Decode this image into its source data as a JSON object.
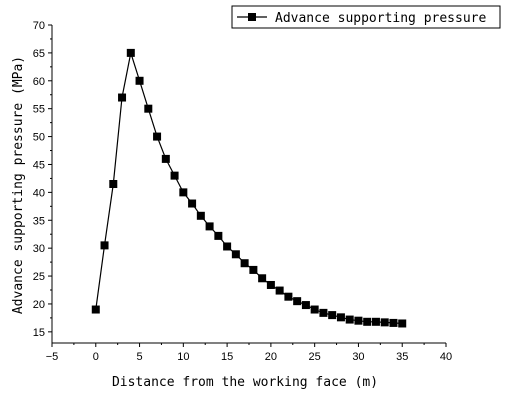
{
  "chart_data": {
    "type": "line",
    "xlabel": "Distance from the working face (m)",
    "ylabel": "Advance supporting pressure (MPa)",
    "xlim": [
      -5,
      40
    ],
    "ylim": [
      13,
      70
    ],
    "xticks": [
      -5,
      0,
      5,
      10,
      15,
      20,
      25,
      30,
      35,
      40
    ],
    "yticks": [
      15,
      20,
      25,
      30,
      35,
      40,
      45,
      50,
      55,
      60,
      65,
      70
    ],
    "grid": false,
    "legend_position": "top-right",
    "series": [
      {
        "name": "Advance supporting pressure",
        "marker": "square",
        "color": "#000000",
        "x": [
          0,
          1,
          2,
          3,
          4,
          5,
          6,
          7,
          8,
          9,
          10,
          11,
          12,
          13,
          14,
          15,
          16,
          17,
          18,
          19,
          20,
          21,
          22,
          23,
          24,
          25,
          26,
          27,
          28,
          29,
          30,
          31,
          32,
          33,
          34,
          35
        ],
        "y": [
          19,
          30.5,
          41.5,
          57,
          65,
          60,
          55,
          50,
          46,
          43,
          40,
          38,
          35.8,
          33.9,
          32.2,
          30.3,
          28.9,
          27.3,
          26.1,
          24.6,
          23.4,
          22.4,
          21.3,
          20.5,
          19.8,
          19,
          18.4,
          18,
          17.6,
          17.2,
          17,
          16.8,
          16.8,
          16.7,
          16.6,
          16.5
        ]
      }
    ]
  }
}
